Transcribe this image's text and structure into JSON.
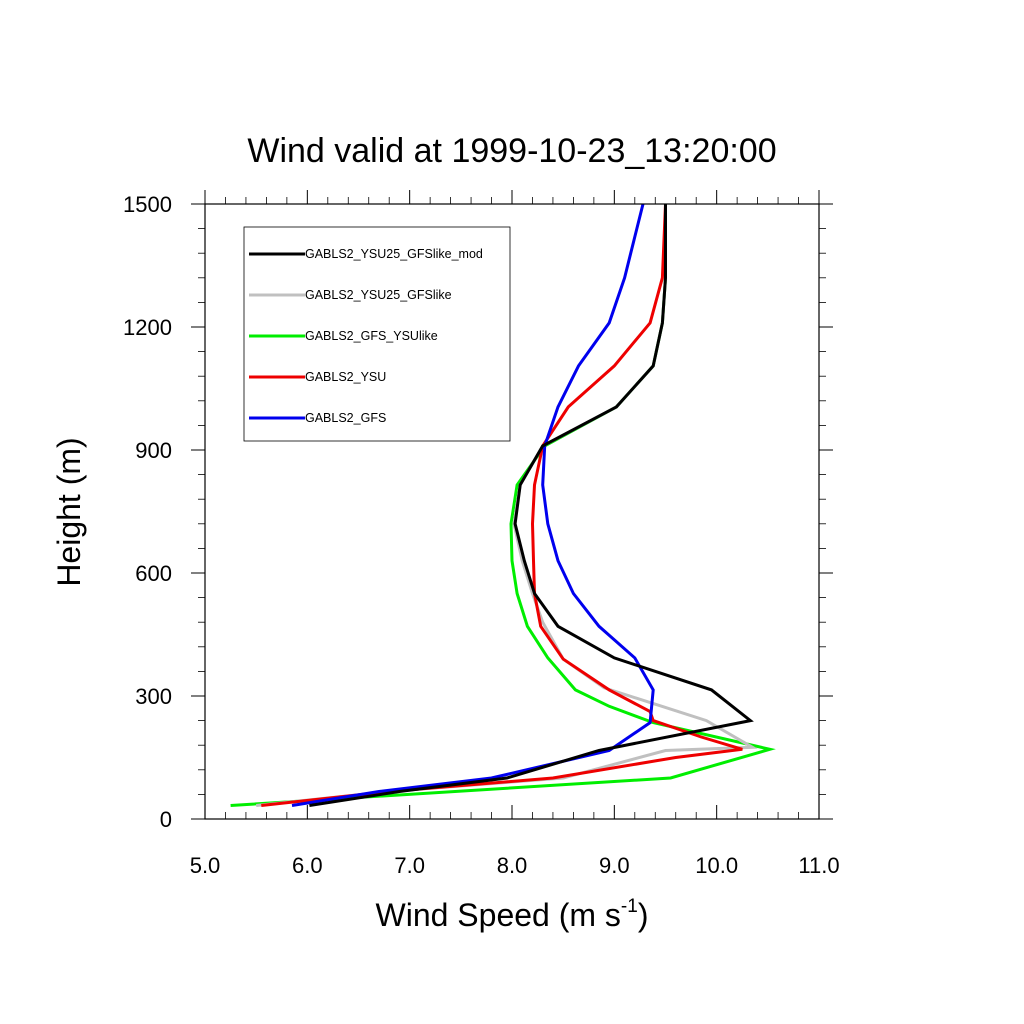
{
  "chart_data": {
    "type": "line",
    "title": "Wind valid at 1999-10-23_13:20:00",
    "xlabel_main": "Wind Speed (m s",
    "xlabel_sup": "-1",
    "xlabel_close": ")",
    "ylabel": "Height (m)",
    "xlim": [
      5.0,
      11.0
    ],
    "ylim": [
      0,
      1500
    ],
    "x_ticks": [
      "5.0",
      "6.0",
      "7.0",
      "8.0",
      "9.0",
      "10.0",
      "11.0"
    ],
    "y_ticks": [
      "0",
      "300",
      "600",
      "900",
      "1200",
      "1500"
    ],
    "legend_position": "top-left",
    "grid": false,
    "series": [
      {
        "name": "GABLS2_YSU25_GFSlike_mod",
        "color": "#000000",
        "points": [
          [
            6.02,
            33
          ],
          [
            6.9,
            67
          ],
          [
            7.95,
            100
          ],
          [
            8.85,
            167
          ],
          [
            10.33,
            240
          ],
          [
            9.95,
            315
          ],
          [
            9.0,
            393
          ],
          [
            8.45,
            470
          ],
          [
            8.22,
            550
          ],
          [
            8.12,
            630
          ],
          [
            8.03,
            720
          ],
          [
            8.08,
            815
          ],
          [
            8.3,
            910
          ],
          [
            9.02,
            1005
          ],
          [
            9.38,
            1105
          ],
          [
            9.47,
            1210
          ],
          [
            9.5,
            1320
          ],
          [
            9.5,
            1500
          ]
        ]
      },
      {
        "name": "GABLS2_YSU25_GFSlike",
        "color": "#c0c0c0",
        "points": [
          [
            5.5,
            33
          ],
          [
            6.8,
            67
          ],
          [
            8.5,
            100
          ],
          [
            9.5,
            167
          ],
          [
            10.35,
            175
          ],
          [
            9.9,
            240
          ],
          [
            9.4,
            280
          ],
          [
            8.9,
            320
          ],
          [
            8.5,
            390
          ],
          [
            8.3,
            480
          ],
          [
            8.2,
            550
          ],
          [
            8.1,
            630
          ],
          [
            8.02,
            720
          ],
          [
            8.08,
            815
          ],
          [
            8.3,
            910
          ],
          [
            9.02,
            1005
          ],
          [
            9.38,
            1105
          ],
          [
            9.47,
            1210
          ],
          [
            9.5,
            1320
          ],
          [
            9.5,
            1500
          ]
        ]
      },
      {
        "name": "GABLS2_GFS_YSUlike",
        "color": "#00ee00",
        "points": [
          [
            5.25,
            33
          ],
          [
            9.55,
            100
          ],
          [
            10.52,
            170
          ],
          [
            9.38,
            235
          ],
          [
            8.95,
            275
          ],
          [
            8.62,
            315
          ],
          [
            8.35,
            393
          ],
          [
            8.15,
            470
          ],
          [
            8.05,
            550
          ],
          [
            8.0,
            630
          ],
          [
            7.99,
            720
          ],
          [
            8.05,
            815
          ],
          [
            8.32,
            910
          ],
          [
            9.02,
            1005
          ],
          [
            9.38,
            1105
          ],
          [
            9.47,
            1210
          ],
          [
            9.5,
            1320
          ],
          [
            9.5,
            1500
          ]
        ]
      },
      {
        "name": "GABLS2_YSU",
        "color": "#ee0000",
        "points": [
          [
            5.55,
            33
          ],
          [
            6.8,
            67
          ],
          [
            8.4,
            100
          ],
          [
            9.6,
            150
          ],
          [
            10.25,
            170
          ],
          [
            9.85,
            200
          ],
          [
            9.38,
            240
          ],
          [
            9.35,
            262
          ],
          [
            8.95,
            315
          ],
          [
            8.5,
            390
          ],
          [
            8.28,
            470
          ],
          [
            8.22,
            550
          ],
          [
            8.21,
            630
          ],
          [
            8.2,
            720
          ],
          [
            8.22,
            815
          ],
          [
            8.3,
            910
          ],
          [
            8.55,
            1005
          ],
          [
            9.0,
            1105
          ],
          [
            9.35,
            1210
          ],
          [
            9.47,
            1320
          ],
          [
            9.5,
            1500
          ]
        ]
      },
      {
        "name": "GABLS2_GFS",
        "color": "#0000ee",
        "points": [
          [
            5.85,
            33
          ],
          [
            6.7,
            67
          ],
          [
            7.8,
            100
          ],
          [
            8.95,
            167
          ],
          [
            9.35,
            235
          ],
          [
            9.38,
            315
          ],
          [
            9.2,
            393
          ],
          [
            8.85,
            470
          ],
          [
            8.6,
            550
          ],
          [
            8.45,
            630
          ],
          [
            8.35,
            720
          ],
          [
            8.3,
            815
          ],
          [
            8.32,
            910
          ],
          [
            8.45,
            1005
          ],
          [
            8.65,
            1105
          ],
          [
            8.95,
            1210
          ],
          [
            9.1,
            1320
          ],
          [
            9.2,
            1420
          ],
          [
            9.28,
            1500
          ]
        ]
      }
    ]
  }
}
